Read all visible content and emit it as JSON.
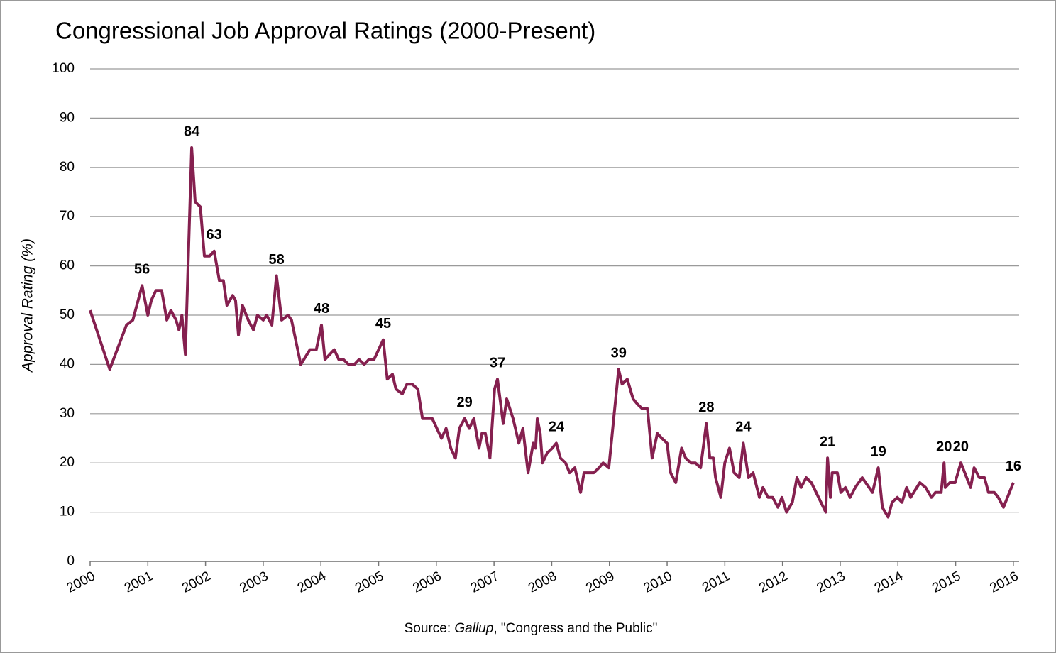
{
  "chart_data": {
    "type": "line",
    "title": "Congressional Job Approval Ratings (2000-Present)",
    "ylabel": "Approval Rating (%)",
    "source": {
      "prefix": "Source: ",
      "publisher": "Gallup",
      "suffix": ", \"Congress and the Public\""
    },
    "xlim": [
      2000,
      2016.1
    ],
    "xticks": [
      2000,
      2001,
      2002,
      2003,
      2004,
      2005,
      2006,
      2007,
      2008,
      2009,
      2010,
      2011,
      2012,
      2013,
      2014,
      2015,
      2016
    ],
    "ylim": [
      0,
      100
    ],
    "yticks": [
      0,
      10,
      20,
      30,
      40,
      50,
      60,
      70,
      80,
      90,
      100
    ],
    "grid": true,
    "series": [
      {
        "color": "#85204f",
        "x": [
          2000.0,
          2000.34,
          2000.63,
          2000.74,
          2000.9,
          2001.0,
          2001.06,
          2001.14,
          2001.24,
          2001.33,
          2001.4,
          2001.49,
          2001.54,
          2001.59,
          2001.65,
          2001.76,
          2001.82,
          2001.91,
          2001.98,
          2002.07,
          2002.15,
          2002.24,
          2002.31,
          2002.37,
          2002.47,
          2002.52,
          2002.57,
          2002.64,
          2002.74,
          2002.83,
          2002.9,
          2003.0,
          2003.06,
          2003.15,
          2003.23,
          2003.32,
          2003.43,
          2003.49,
          2003.65,
          2003.81,
          2003.92,
          2004.01,
          2004.07,
          2004.15,
          2004.23,
          2004.31,
          2004.39,
          2004.48,
          2004.58,
          2004.66,
          2004.75,
          2004.83,
          2004.92,
          2005.08,
          2005.15,
          2005.24,
          2005.3,
          2005.41,
          2005.49,
          2005.58,
          2005.68,
          2005.76,
          2005.93,
          2006.09,
          2006.17,
          2006.25,
          2006.33,
          2006.4,
          2006.49,
          2006.57,
          2006.65,
          2006.74,
          2006.79,
          2006.85,
          2006.93,
          2007.01,
          2007.06,
          2007.16,
          2007.22,
          2007.33,
          2007.43,
          2007.5,
          2007.59,
          2007.68,
          2007.72,
          2007.75,
          2007.8,
          2007.84,
          2007.92,
          2008.01,
          2008.08,
          2008.15,
          2008.24,
          2008.31,
          2008.4,
          2008.5,
          2008.56,
          2008.73,
          2008.82,
          2008.89,
          2008.99,
          2009.16,
          2009.22,
          2009.31,
          2009.41,
          2009.48,
          2009.57,
          2009.66,
          2009.74,
          2009.83,
          2009.91,
          2010.0,
          2010.06,
          2010.15,
          2010.25,
          2010.32,
          2010.41,
          2010.49,
          2010.58,
          2010.68,
          2010.74,
          2010.8,
          2010.84,
          2010.93,
          2011.0,
          2011.08,
          2011.16,
          2011.25,
          2011.32,
          2011.41,
          2011.49,
          2011.6,
          2011.66,
          2011.75,
          2011.83,
          2011.92,
          2011.99,
          2012.07,
          2012.17,
          2012.25,
          2012.32,
          2012.41,
          2012.5,
          2012.75,
          2012.78,
          2012.83,
          2012.86,
          2012.95,
          2013.01,
          2013.09,
          2013.17,
          2013.26,
          2013.38,
          2013.56,
          2013.66,
          2013.73,
          2013.83,
          2013.9,
          2013.99,
          2014.07,
          2014.15,
          2014.22,
          2014.38,
          2014.48,
          2014.58,
          2014.65,
          2014.75,
          2014.8,
          2014.82,
          2014.9,
          2014.99,
          2015.09,
          2015.26,
          2015.32,
          2015.41,
          2015.5,
          2015.57,
          2015.67,
          2015.74,
          2015.83,
          2016.0
        ],
        "values": [
          51,
          39,
          48,
          49,
          56,
          50,
          53,
          55,
          55,
          49,
          51,
          49,
          47,
          50,
          42,
          84,
          73,
          72,
          62,
          62,
          63,
          57,
          57,
          52,
          54,
          53,
          46,
          52,
          49,
          47,
          50,
          49,
          50,
          48,
          58,
          49,
          50,
          49,
          40,
          43,
          43,
          48,
          41,
          42,
          43,
          41,
          41,
          40,
          40,
          41,
          40,
          41,
          41,
          45,
          37,
          38,
          35,
          34,
          36,
          36,
          35,
          29,
          29,
          25,
          27,
          23,
          21,
          27,
          29,
          27,
          29,
          23,
          26,
          26,
          21,
          35,
          37,
          28,
          33,
          29,
          24,
          27,
          18,
          24,
          23,
          29,
          26,
          20,
          22,
          23,
          24,
          21,
          20,
          18,
          19,
          14,
          18,
          18,
          19,
          20,
          19,
          39,
          36,
          37,
          33,
          32,
          31,
          31,
          21,
          26,
          25,
          24,
          18,
          16,
          23,
          21,
          20,
          20,
          19,
          28,
          21,
          21,
          17,
          13,
          20,
          23,
          18,
          17,
          24,
          17,
          18,
          13,
          15,
          13,
          13,
          11,
          13,
          10,
          12,
          17,
          15,
          17,
          16,
          10,
          21,
          13,
          18,
          18,
          14,
          15,
          13,
          15,
          17,
          14,
          19,
          11,
          9,
          12,
          13,
          12,
          15,
          13,
          16,
          15,
          13,
          14,
          14,
          20,
          15,
          16,
          16,
          20,
          15,
          19,
          17,
          17,
          14,
          14,
          13,
          11,
          16
        ]
      }
    ],
    "annotations": [
      {
        "x": 2000.9,
        "y": 56
      },
      {
        "x": 2001.76,
        "y": 84
      },
      {
        "x": 2002.15,
        "y": 63
      },
      {
        "x": 2003.23,
        "y": 58
      },
      {
        "x": 2004.01,
        "y": 48
      },
      {
        "x": 2005.08,
        "y": 45
      },
      {
        "x": 2006.49,
        "y": 29
      },
      {
        "x": 2007.06,
        "y": 37
      },
      {
        "x": 2008.08,
        "y": 24
      },
      {
        "x": 2009.16,
        "y": 39
      },
      {
        "x": 2010.68,
        "y": 28
      },
      {
        "x": 2011.32,
        "y": 24
      },
      {
        "x": 2012.78,
        "y": 21
      },
      {
        "x": 2013.66,
        "y": 19
      },
      {
        "x": 2014.8,
        "y": 20
      },
      {
        "x": 2015.09,
        "y": 20
      },
      {
        "x": 2016.0,
        "y": 16
      }
    ]
  }
}
